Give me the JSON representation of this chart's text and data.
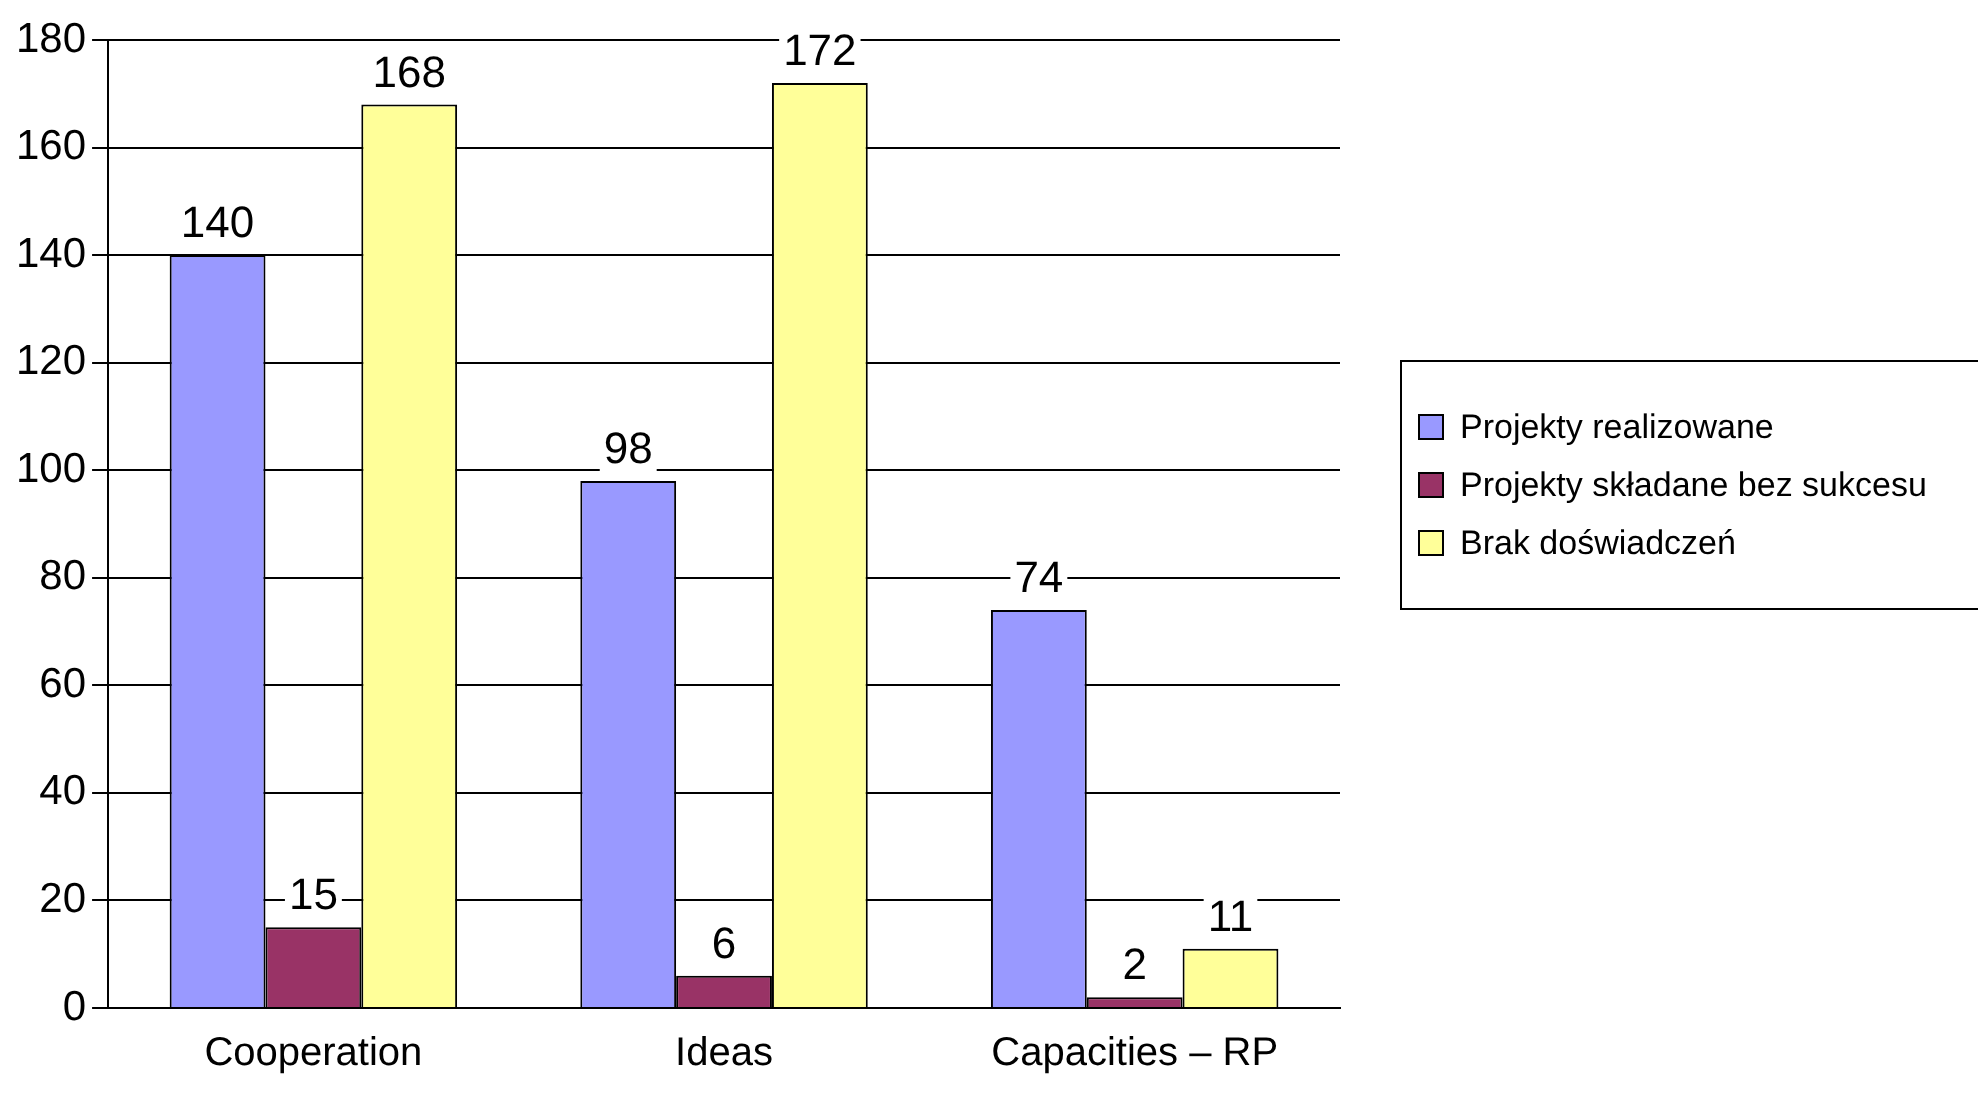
{
  "chart_data": {
    "type": "bar",
    "categories": [
      "Cooperation",
      "Ideas",
      "Capacities – RP"
    ],
    "series": [
      {
        "name": "Projekty realizowane",
        "color": "#9999ff",
        "values": [
          140,
          98,
          74
        ]
      },
      {
        "name": "Projekty składane bez sukcesu",
        "color": "#993366",
        "values": [
          15,
          6,
          2
        ]
      },
      {
        "name": "Brak doświadczeń",
        "color": "#ffff99",
        "values": [
          168,
          172,
          11
        ]
      }
    ],
    "ylim": [
      0,
      180
    ],
    "yticks": [
      0,
      20,
      40,
      60,
      80,
      100,
      120,
      140,
      160,
      180
    ],
    "grid": "y",
    "legend": "right",
    "data_labels": true
  }
}
